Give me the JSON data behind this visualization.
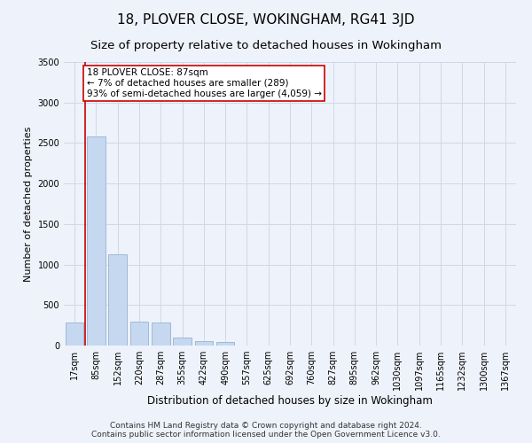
{
  "title": "18, PLOVER CLOSE, WOKINGHAM, RG41 3JD",
  "subtitle": "Size of property relative to detached houses in Wokingham",
  "xlabel": "Distribution of detached houses by size in Wokingham",
  "ylabel": "Number of detached properties",
  "categories": [
    "17sqm",
    "85sqm",
    "152sqm",
    "220sqm",
    "287sqm",
    "355sqm",
    "422sqm",
    "490sqm",
    "557sqm",
    "625sqm",
    "692sqm",
    "760sqm",
    "827sqm",
    "895sqm",
    "962sqm",
    "1030sqm",
    "1097sqm",
    "1165sqm",
    "1232sqm",
    "1300sqm",
    "1367sqm"
  ],
  "values": [
    280,
    2580,
    1130,
    290,
    280,
    100,
    60,
    40,
    0,
    0,
    0,
    0,
    0,
    0,
    0,
    0,
    0,
    0,
    0,
    0,
    0
  ],
  "bar_color": "#c5d8f0",
  "bar_edge_color": "#a0b8d8",
  "vline_x_idx": 1,
  "annotation_text": "18 PLOVER CLOSE: 87sqm\n← 7% of detached houses are smaller (289)\n93% of semi-detached houses are larger (4,059) →",
  "annotation_box_color": "#ffffff",
  "annotation_box_edge": "#cc0000",
  "vline_color": "#cc0000",
  "ylim": [
    0,
    3500
  ],
  "yticks": [
    0,
    500,
    1000,
    1500,
    2000,
    2500,
    3000,
    3500
  ],
  "grid_color": "#d0d8e8",
  "bg_color": "#eef2fa",
  "footer": "Contains HM Land Registry data © Crown copyright and database right 2024.\nContains public sector information licensed under the Open Government Licence v3.0.",
  "title_fontsize": 11,
  "subtitle_fontsize": 9.5,
  "xlabel_fontsize": 8.5,
  "ylabel_fontsize": 8,
  "tick_fontsize": 7,
  "footer_fontsize": 6.5,
  "ann_fontsize": 7.5
}
